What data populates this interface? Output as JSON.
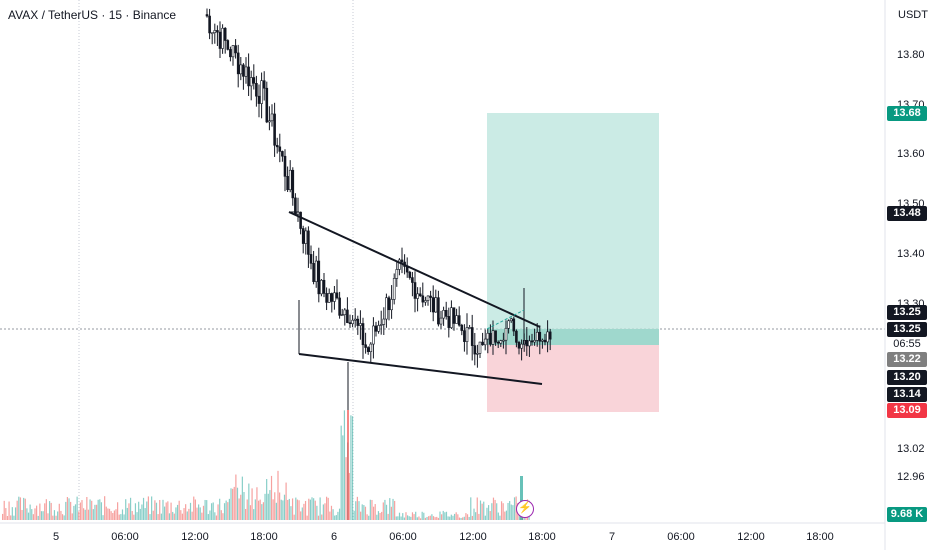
{
  "symbol_title": "AVAX / TetherUS · 15 · Binance",
  "currency": "USDT",
  "price_axis": {
    "ticks": [
      "13.80",
      "13.70",
      "13.60",
      "13.50",
      "13.40",
      "13.30",
      "13.02",
      "12.96"
    ]
  },
  "price_badges": {
    "target": "13.68",
    "current": "13.48",
    "open_a": "13.25",
    "open_b": "13.25",
    "countdown": "06:55",
    "entry": "13.22",
    "low_a": "13.20",
    "low_b": "13.14",
    "stop": "13.09",
    "volume": "9.68 K"
  },
  "time_axis": [
    "5",
    "06:00",
    "12:00",
    "18:00",
    "6",
    "06:00",
    "12:00",
    "18:00",
    "7",
    "06:00",
    "12:00",
    "18:00"
  ],
  "colors": {
    "up": "#26a69a",
    "down": "#ef5350",
    "profit_zone": "#b9e4dc",
    "loss_zone": "#f8ccd2",
    "grid": "#e0e3eb"
  },
  "drawing": {
    "pattern": "falling wedge",
    "position": "long"
  },
  "chart_data": {
    "type": "candlestick",
    "title": "AVAX / TetherUS · 15 · Binance",
    "y_unit": "USDT",
    "ylim": [
      12.9,
      13.88
    ],
    "long_position": {
      "target": 13.68,
      "entry": 13.22,
      "stop": 13.09
    },
    "wedge_upper": [
      [
        13.48,
        "start"
      ],
      [
        13.25,
        "end"
      ]
    ],
    "wedge_lower": [
      [
        13.2,
        "start"
      ],
      [
        13.14,
        "end"
      ]
    ],
    "last_price": 13.25,
    "last_volume": "9.68 K"
  }
}
